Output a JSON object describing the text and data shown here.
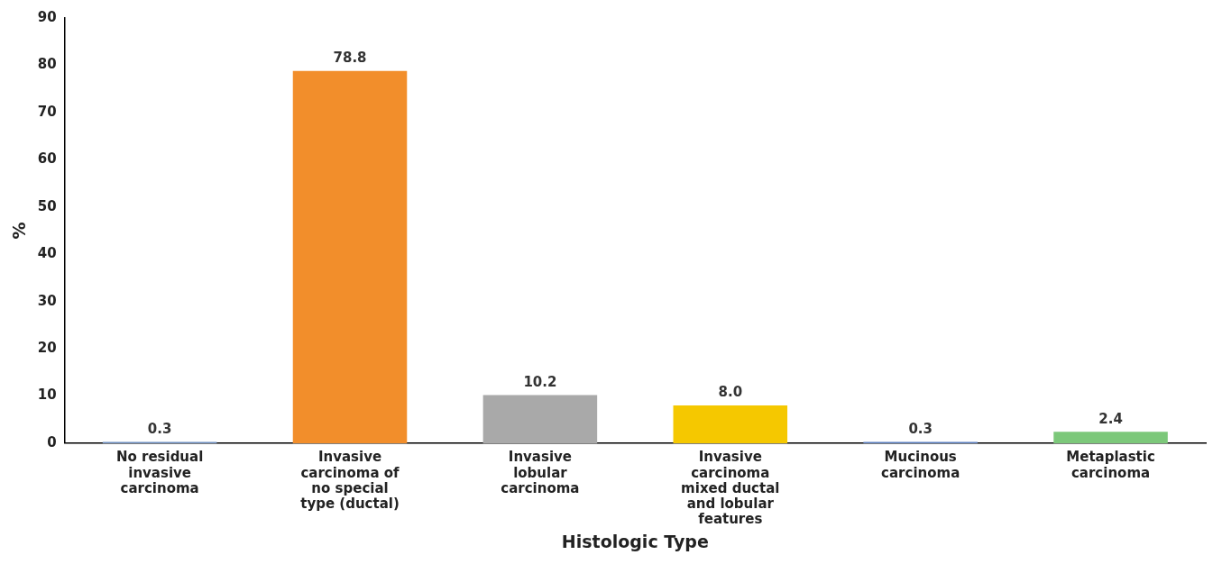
{
  "chart_data": {
    "type": "bar",
    "xlabel": "Histologic Type",
    "ylabel": "%",
    "categories": [
      "No residual invasive carcinoma",
      "Invasive carcinoma of no special type (ductal)",
      "Invasive lobular carcinoma",
      "Invasive carcinoma mixed ductal and lobular features",
      "Mucinous carcinoma",
      "Metaplastic carcinoma"
    ],
    "values": [
      0.3,
      78.8,
      10.2,
      8.0,
      0.3,
      2.4
    ],
    "colors": [
      "#6f8fc0",
      "#f28e2b",
      "#a9a9a9",
      "#f5c800",
      "#5b7fbf",
      "#7cc87a"
    ],
    "value_labels": [
      "0.3",
      "78.8",
      "10.2",
      "8.0",
      "0.3",
      "2.4"
    ],
    "ylim": [
      0,
      90
    ],
    "yticks": [
      0,
      10,
      20,
      30,
      40,
      50,
      60,
      70,
      80,
      90
    ],
    "grid": false
  }
}
